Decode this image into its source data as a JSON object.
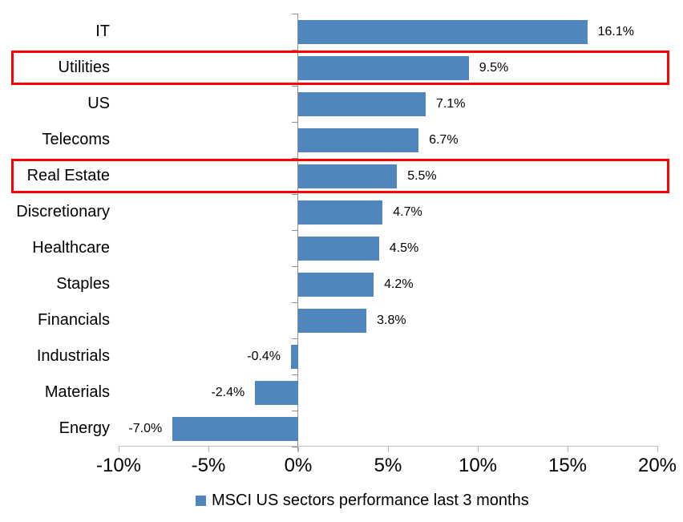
{
  "chart_data": {
    "type": "bar",
    "orientation": "horizontal",
    "title": "",
    "categories": [
      "IT",
      "Utilities",
      "US",
      "Telecoms",
      "Real Estate",
      "Discretionary",
      "Healthcare",
      "Staples",
      "Financials",
      "Industrials",
      "Materials",
      "Energy"
    ],
    "values": [
      16.1,
      9.5,
      7.1,
      6.7,
      5.5,
      4.7,
      4.5,
      4.2,
      3.8,
      -0.4,
      -2.4,
      -7.0
    ],
    "value_labels": [
      "16.1%",
      "9.5%",
      "7.1%",
      "6.7%",
      "5.5%",
      "4.7%",
      "4.5%",
      "4.2%",
      "3.8%",
      "-0.4%",
      "-2.4%",
      "-7.0%"
    ],
    "highlighted_categories": [
      "Utilities",
      "Real Estate"
    ],
    "x_tick_labels": [
      "-10%",
      "-5%",
      "0%",
      "5%",
      "10%",
      "15%",
      "20%"
    ],
    "x_tick_values": [
      -10,
      -5,
      0,
      5,
      10,
      15,
      20
    ],
    "xlim": [
      -10,
      20
    ],
    "grid": false,
    "bar_color": "#4F86BE",
    "highlight_color": "#FF0000",
    "axis_color": "#BFBFBF",
    "legend": {
      "label": "MSCI US sectors performance last 3 months",
      "position": "bottom",
      "marker_color": "#4F86BE"
    }
  }
}
